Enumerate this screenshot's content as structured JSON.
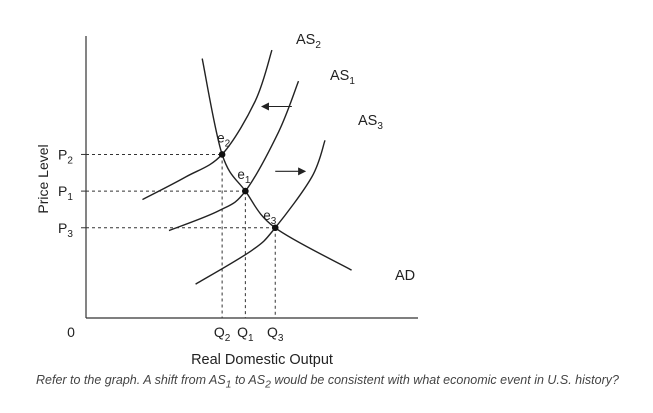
{
  "chart_data": {
    "type": "line",
    "xlabel": "Real Domestic Output",
    "ylabel": "Price Level",
    "origin_label": "0",
    "xlim": [
      0,
      100
    ],
    "ylim": [
      0,
      100
    ],
    "grid": false,
    "legend": "none",
    "ticks_x": [
      {
        "label": "Q",
        "sub": "2",
        "value": 41
      },
      {
        "label": "Q",
        "sub": "1",
        "value": 48
      },
      {
        "label": "Q",
        "sub": "3",
        "value": 57
      }
    ],
    "ticks_y": [
      {
        "label": "P",
        "sub": "2",
        "value": 58
      },
      {
        "label": "P",
        "sub": "1",
        "value": 45
      },
      {
        "label": "P",
        "sub": "3",
        "value": 32
      }
    ],
    "series": [
      {
        "name": "AS",
        "sub": "2",
        "points": [
          [
            17,
            42
          ],
          [
            30,
            50
          ],
          [
            41,
            58
          ],
          [
            51,
            77
          ],
          [
            56,
            95
          ]
        ]
      },
      {
        "name": "AS",
        "sub": "1",
        "points": [
          [
            25,
            31
          ],
          [
            40,
            38
          ],
          [
            48,
            45
          ],
          [
            58,
            66
          ],
          [
            64,
            84
          ]
        ]
      },
      {
        "name": "AS",
        "sub": "3",
        "points": [
          [
            33,
            12
          ],
          [
            50,
            24
          ],
          [
            57,
            32
          ],
          [
            68,
            50
          ],
          [
            72,
            63
          ]
        ]
      },
      {
        "name": "AD",
        "sub": "",
        "points": [
          [
            35,
            92
          ],
          [
            41,
            58
          ],
          [
            48,
            45
          ],
          [
            57,
            32
          ],
          [
            80,
            17
          ]
        ]
      }
    ],
    "equilibria": [
      {
        "label": "e",
        "sub": "2",
        "x": 41,
        "y": 58
      },
      {
        "label": "e",
        "sub": "1",
        "x": 48,
        "y": 45
      },
      {
        "label": "e",
        "sub": "3",
        "x": 57,
        "y": 32
      }
    ],
    "arrows": [
      {
        "direction": "left",
        "x_from": 62,
        "x_to": 53,
        "y": 75
      },
      {
        "direction": "right",
        "x_from": 57,
        "x_to": 66,
        "y": 52
      }
    ]
  },
  "caption": {
    "text_a": "Refer to the graph. A shift from AS",
    "sub_a": "1",
    "text_b": " to AS",
    "sub_b": "2",
    "text_c": " would be consistent with what economic event in U.S. history?"
  }
}
